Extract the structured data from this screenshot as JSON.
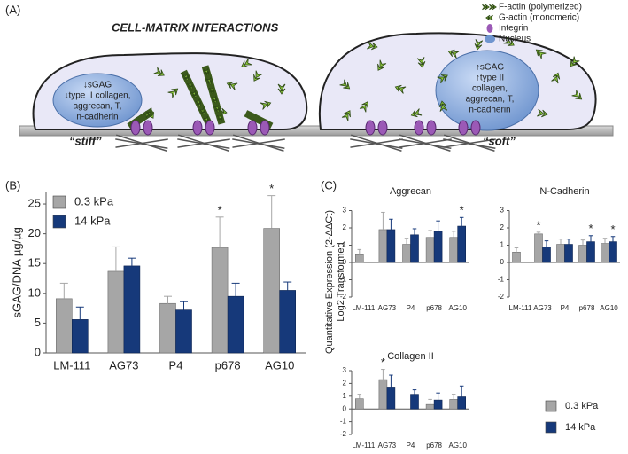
{
  "panel_labels": {
    "a": "(A)",
    "b": "(B)",
    "c": "(C)"
  },
  "diagram": {
    "title": "CELL-MATRIX INTERACTIONS",
    "legend": [
      "F-actin (polymerized)",
      "G-actin (monomeric)",
      "Integrin",
      "Nucleus"
    ],
    "stiff_cell": {
      "nucleus_text": [
        "↓sGAG",
        "↓type II collagen,",
        "aggrecan, T,",
        "n-cadherin"
      ],
      "label": "“stiff”"
    },
    "soft_cell": {
      "nucleus_text": [
        "↑sGAG",
        "↑type II",
        "collagen,",
        "aggrecan, T,",
        "n-cadherin"
      ],
      "label": "“soft”"
    }
  },
  "panel_c_y_label": [
    "Quantitative Expression (2-ΔΔCt)",
    "Log2 Transformed"
  ],
  "chart_data": [
    {
      "type": "bar",
      "y_label": "sGAG/DNA µg/µg",
      "categories": [
        "LM-111",
        "AG73",
        "P4",
        "p678",
        "AG10"
      ],
      "series": [
        {
          "name": "0.3 kPa",
          "color": "#a6a6a6",
          "values": [
            9.1,
            13.7,
            8.3,
            17.7,
            20.9
          ],
          "errors": [
            2.6,
            4.1,
            1.2,
            5.1,
            5.5
          ]
        },
        {
          "name": "14 kPa",
          "color": "#16397a",
          "values": [
            5.6,
            14.6,
            7.2,
            9.5,
            10.5
          ],
          "errors": [
            2.1,
            1.3,
            1.4,
            2.2,
            1.4
          ]
        }
      ],
      "ylim": [
        0,
        27
      ],
      "yticks": [
        0,
        5,
        10,
        15,
        20,
        25
      ],
      "annotations": [
        {
          "text": "*",
          "series": 0,
          "category": "p678"
        },
        {
          "text": "*",
          "series": 0,
          "category": "AG10"
        }
      ]
    },
    {
      "type": "bar",
      "title": "Aggrecan",
      "categories": [
        "LM-111",
        "AG73",
        "P4",
        "p678",
        "AG10"
      ],
      "series": [
        {
          "name": "0.3 kPa",
          "color": "#a6a6a6",
          "values": [
            0.45,
            1.9,
            1.05,
            1.45,
            1.45
          ],
          "errors": [
            0.3,
            1.0,
            0.35,
            0.4,
            0.35
          ]
        },
        {
          "name": "14 kPa",
          "color": "#16397a",
          "values": [
            null,
            1.9,
            1.6,
            1.8,
            2.1
          ],
          "errors": [
            null,
            0.6,
            0.35,
            0.6,
            0.5
          ]
        }
      ],
      "ylim": [
        -2,
        3
      ],
      "yticks": [
        -2,
        -1,
        0,
        1,
        2,
        3
      ],
      "annotations": [
        {
          "text": "*",
          "series": 1,
          "category": "AG10"
        }
      ]
    },
    {
      "type": "bar",
      "title": "N-Cadherin",
      "categories": [
        "LM-111",
        "AG73",
        "P4",
        "p678",
        "AG10"
      ],
      "series": [
        {
          "color": "#a6a6a6",
          "values": [
            0.6,
            1.65,
            1.05,
            1.0,
            1.1
          ],
          "errors": [
            0.25,
            0.1,
            0.3,
            0.3,
            0.3
          ]
        },
        {
          "color": "#16397a",
          "values": [
            null,
            0.9,
            1.05,
            1.2,
            1.2
          ],
          "errors": [
            null,
            0.35,
            0.3,
            0.35,
            0.3
          ]
        }
      ],
      "ylim": [
        -2,
        3
      ],
      "yticks": [
        -2,
        -1,
        0,
        1,
        2,
        3
      ],
      "annotations": [
        {
          "text": "*",
          "series": 0,
          "category": "AG73"
        },
        {
          "text": "*",
          "series": 1,
          "category": "p678"
        },
        {
          "text": "*",
          "series": 1,
          "category": "AG10"
        }
      ]
    },
    {
      "type": "bar",
      "title": "Collagen II",
      "categories": [
        "LM-111",
        "AG73",
        "P4",
        "p678",
        "AG10"
      ],
      "series": [
        {
          "color": "#a6a6a6",
          "values": [
            0.8,
            2.3,
            null,
            0.35,
            0.75
          ],
          "errors": [
            0.35,
            0.8,
            null,
            0.4,
            0.4
          ]
        },
        {
          "color": "#16397a",
          "values": [
            null,
            1.65,
            1.15,
            0.7,
            0.95
          ],
          "errors": [
            null,
            1.0,
            0.35,
            0.55,
            0.85
          ]
        }
      ],
      "ylim": [
        -2,
        3
      ],
      "yticks": [
        -2,
        -1,
        0,
        1,
        2,
        3
      ],
      "annotations": [
        {
          "text": "*",
          "series": 0,
          "category": "AG73"
        }
      ]
    }
  ]
}
